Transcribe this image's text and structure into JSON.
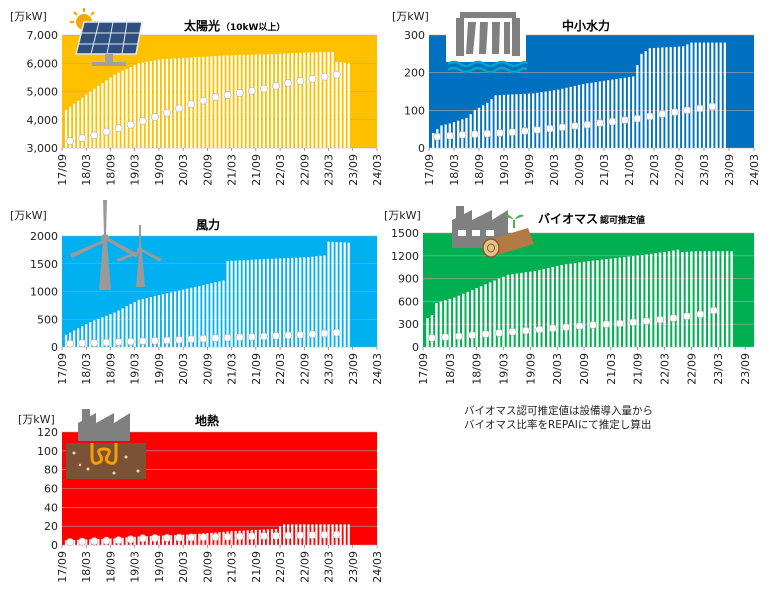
{
  "note": {
    "line1": "バイオマス認可推定値は設備導入量から",
    "line2": "バイオマス比率をREPAIにて推定し算出"
  },
  "chart_data": [
    {
      "type": "bar",
      "title": "太陽光",
      "title_suffix": "（10kW以上）",
      "unit_label": "[万kW]",
      "icon": "solar-panel-icon",
      "background": "#ffc000",
      "ylim": [
        3000,
        7000
      ],
      "yticks": [
        3000,
        4000,
        5000,
        6000,
        7000
      ],
      "ytick_labels": [
        "3,000",
        "4,000",
        "5,000",
        "6,000",
        "7,000"
      ],
      "xticks": [
        "17/09",
        "18/03",
        "18/09",
        "19/03",
        "19/09",
        "20/03",
        "20/09",
        "21/03",
        "21/09",
        "22/03",
        "22/09",
        "23/03",
        "23/09",
        "24/03"
      ],
      "x_start": "2017-09",
      "x_end": "2024-03",
      "bars": {
        "start": "2017-10",
        "end": "2023-08",
        "anchors": [
          [
            0,
            4350
          ],
          [
            6,
            5000
          ],
          [
            12,
            5600
          ],
          [
            18,
            6000
          ],
          [
            24,
            6150
          ],
          [
            30,
            6200
          ],
          [
            40,
            6280
          ],
          [
            50,
            6320
          ],
          [
            60,
            6380
          ],
          [
            66,
            6400
          ],
          [
            67,
            6050
          ],
          [
            70,
            6000
          ]
        ]
      },
      "markers": {
        "start": "2017-11",
        "end": "2023-05",
        "step": 3,
        "anchors": [
          [
            0,
            3250
          ],
          [
            6,
            3450
          ],
          [
            12,
            3700
          ],
          [
            18,
            3950
          ],
          [
            24,
            4250
          ],
          [
            30,
            4550
          ],
          [
            36,
            4800
          ],
          [
            42,
            4950
          ],
          [
            48,
            5100
          ],
          [
            54,
            5300
          ],
          [
            60,
            5450
          ],
          [
            66,
            5600
          ]
        ]
      }
    },
    {
      "type": "bar",
      "title": "中小水力",
      "unit_label": "[万kW]",
      "icon": "dam-icon",
      "background": "#0070c0",
      "ylim": [
        0,
        300
      ],
      "yticks": [
        0,
        100,
        200,
        300
      ],
      "ytick_labels": [
        "0",
        "100",
        "200",
        "300"
      ],
      "xticks": [
        "17/09",
        "18/03",
        "18/09",
        "19/03",
        "19/09",
        "20/03",
        "20/09",
        "21/03",
        "21/09",
        "22/03",
        "22/09",
        "23/03",
        "23/09",
        "24/03"
      ],
      "x_start": "2017-09",
      "x_end": "2024-03",
      "bars": {
        "start": "2017-10",
        "end": "2023-08",
        "anchors": [
          [
            0,
            40
          ],
          [
            2,
            60
          ],
          [
            4,
            65
          ],
          [
            8,
            80
          ],
          [
            10,
            100
          ],
          [
            13,
            120
          ],
          [
            15,
            140
          ],
          [
            24,
            145
          ],
          [
            30,
            155
          ],
          [
            36,
            170
          ],
          [
            42,
            180
          ],
          [
            48,
            190
          ],
          [
            50,
            250
          ],
          [
            52,
            265
          ],
          [
            60,
            270
          ],
          [
            62,
            280
          ],
          [
            70,
            280
          ]
        ]
      },
      "markers": {
        "start": "2017-11",
        "end": "2023-05",
        "step": 3,
        "anchors": [
          [
            0,
            30
          ],
          [
            6,
            35
          ],
          [
            12,
            38
          ],
          [
            18,
            42
          ],
          [
            24,
            48
          ],
          [
            30,
            55
          ],
          [
            36,
            62
          ],
          [
            42,
            70
          ],
          [
            48,
            78
          ],
          [
            54,
            90
          ],
          [
            60,
            100
          ],
          [
            66,
            110
          ]
        ]
      }
    },
    {
      "type": "bar",
      "title": "風力",
      "unit_label": "[万kW]",
      "icon": "wind-turbine-icon",
      "background": "#00b0f0",
      "ylim": [
        0,
        2000
      ],
      "yticks": [
        0,
        500,
        1000,
        1500,
        2000
      ],
      "ytick_labels": [
        "0",
        "500",
        "1000",
        "1500",
        "2000"
      ],
      "xticks": [
        "17/09",
        "18/03",
        "18/09",
        "19/03",
        "19/09",
        "20/03",
        "20/09",
        "21/03",
        "21/09",
        "22/03",
        "22/09",
        "23/03",
        "23/09",
        "24/03"
      ],
      "x_start": "2017-09",
      "x_end": "2024-03",
      "bars": {
        "start": "2017-10",
        "end": "2023-08",
        "anchors": [
          [
            0,
            220
          ],
          [
            6,
            450
          ],
          [
            12,
            620
          ],
          [
            18,
            850
          ],
          [
            21,
            900
          ],
          [
            24,
            950
          ],
          [
            30,
            1050
          ],
          [
            36,
            1150
          ],
          [
            39,
            1200
          ],
          [
            40,
            1550
          ],
          [
            48,
            1580
          ],
          [
            54,
            1600
          ],
          [
            60,
            1620
          ],
          [
            64,
            1650
          ],
          [
            65,
            1900
          ],
          [
            70,
            1880
          ]
        ]
      },
      "markers": {
        "start": "2017-11",
        "end": "2023-05",
        "step": 3,
        "anchors": [
          [
            0,
            60
          ],
          [
            12,
            90
          ],
          [
            24,
            120
          ],
          [
            36,
            160
          ],
          [
            48,
            190
          ],
          [
            60,
            230
          ],
          [
            66,
            260
          ]
        ]
      }
    },
    {
      "type": "bar",
      "title": "バイオマス",
      "title_suffix": "認可推定値",
      "unit_label": "[万kW]",
      "icon": "factory-log-icon",
      "background": "#00b050",
      "ylim": [
        0,
        1500
      ],
      "yticks": [
        0,
        300,
        600,
        900,
        1200,
        1500
      ],
      "ytick_labels": [
        "0",
        "300",
        "600",
        "900",
        "1200",
        "1500"
      ],
      "xticks": [
        "17/09",
        "18/03",
        "18/09",
        "19/03",
        "19/09",
        "20/03",
        "20/09",
        "21/03",
        "21/09",
        "22/03",
        "22/09",
        "23/03",
        "23/09"
      ],
      "x_start": "2017-09",
      "x_end": "2023-11",
      "bars": {
        "start": "2017-10",
        "end": "2023-06",
        "anchors": [
          [
            0,
            380
          ],
          [
            1,
            420
          ],
          [
            2,
            580
          ],
          [
            6,
            650
          ],
          [
            12,
            800
          ],
          [
            18,
            950
          ],
          [
            24,
            1000
          ],
          [
            30,
            1080
          ],
          [
            36,
            1130
          ],
          [
            42,
            1170
          ],
          [
            48,
            1210
          ],
          [
            54,
            1260
          ],
          [
            56,
            1280
          ],
          [
            57,
            1250
          ],
          [
            60,
            1260
          ],
          [
            68,
            1260
          ]
        ]
      },
      "markers": {
        "start": "2017-11",
        "end": "2023-02",
        "step": 3,
        "anchors": [
          [
            0,
            120
          ],
          [
            6,
            140
          ],
          [
            12,
            170
          ],
          [
            18,
            200
          ],
          [
            24,
            230
          ],
          [
            30,
            260
          ],
          [
            36,
            290
          ],
          [
            42,
            310
          ],
          [
            48,
            340
          ],
          [
            54,
            380
          ],
          [
            60,
            430
          ],
          [
            63,
            480
          ]
        ]
      }
    },
    {
      "type": "bar",
      "title": "地熱",
      "unit_label": "[万kW]",
      "icon": "geothermal-icon",
      "background": "#ff0000",
      "ylim": [
        0,
        120
      ],
      "yticks": [
        0,
        20,
        40,
        60,
        80,
        100,
        120
      ],
      "ytick_labels": [
        "0",
        "20",
        "40",
        "60",
        "80",
        "100",
        "120"
      ],
      "xticks": [
        "17/09",
        "18/03",
        "18/09",
        "19/03",
        "19/09",
        "20/03",
        "20/09",
        "21/03",
        "21/09",
        "22/03",
        "22/09",
        "23/03",
        "23/09",
        "24/03"
      ],
      "x_start": "2017-09",
      "x_end": "2024-03",
      "bars": {
        "start": "2017-10",
        "end": "2023-08",
        "anchors": [
          [
            0,
            5
          ],
          [
            12,
            7
          ],
          [
            18,
            9
          ],
          [
            30,
            11
          ],
          [
            42,
            15
          ],
          [
            52,
            17
          ],
          [
            54,
            22
          ],
          [
            70,
            22
          ]
        ]
      },
      "markers": {
        "start": "2017-11",
        "end": "2023-05",
        "step": 3,
        "anchors": [
          [
            0,
            3
          ],
          [
            12,
            5
          ],
          [
            18,
            7
          ],
          [
            30,
            8
          ],
          [
            42,
            9
          ],
          [
            54,
            10
          ],
          [
            66,
            11
          ]
        ]
      }
    }
  ]
}
